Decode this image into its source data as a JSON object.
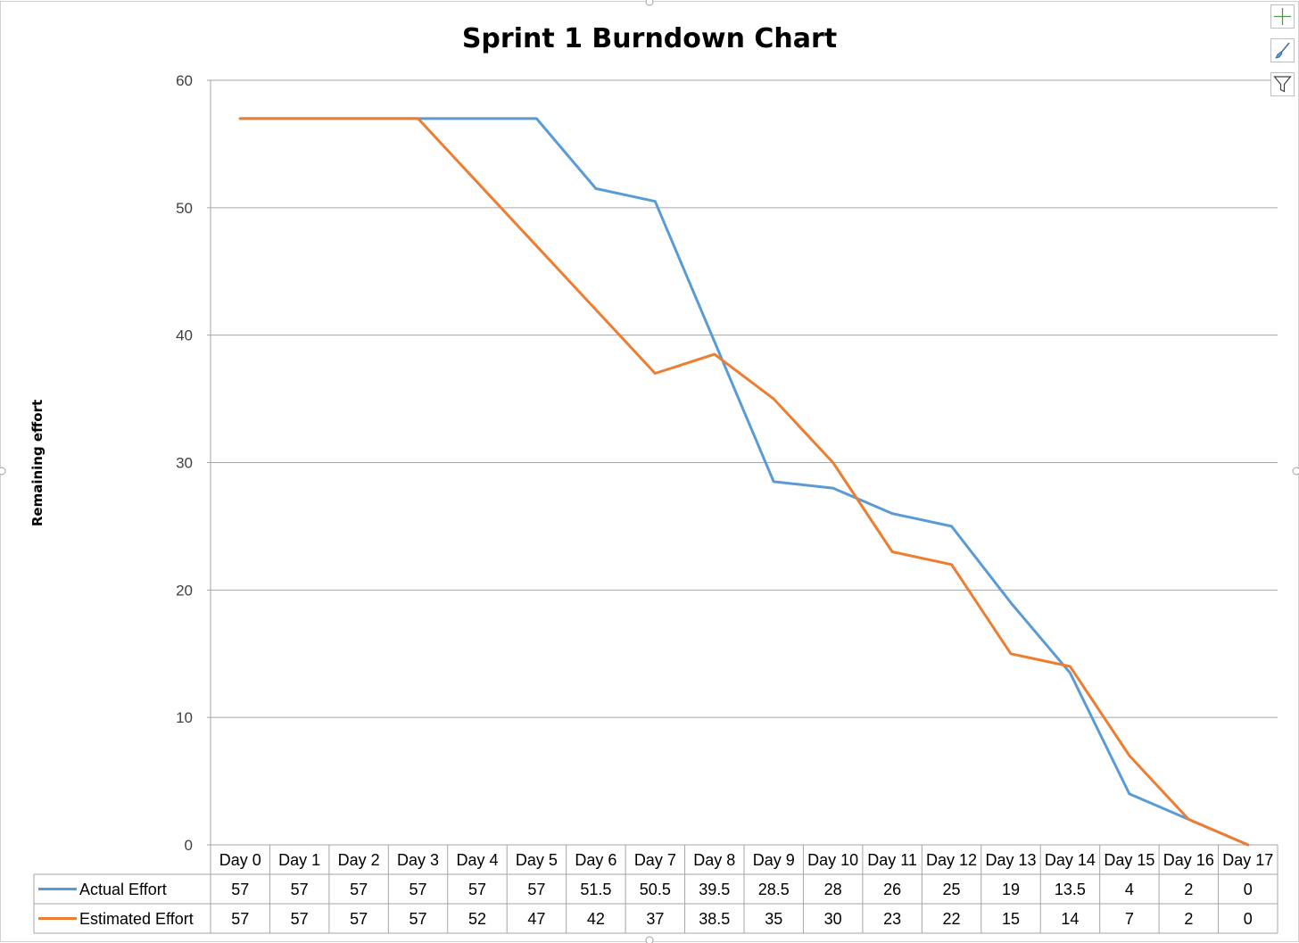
{
  "tools": [
    {
      "name": "chart-elements-button",
      "icon": "plus-icon"
    },
    {
      "name": "chart-styles-button",
      "icon": "paintbrush-icon"
    },
    {
      "name": "chart-filters-button",
      "icon": "filter-icon"
    }
  ],
  "chart_data": {
    "type": "line",
    "title": "Sprint 1 Burndown Chart",
    "xlabel": "",
    "ylabel": "Remaining effort",
    "ylim": [
      0,
      60
    ],
    "yticks": [
      0,
      10,
      20,
      30,
      40,
      50,
      60
    ],
    "grid": true,
    "legend": "data-table",
    "categories": [
      "Day 0",
      "Day 1",
      "Day 2",
      "Day 3",
      "Day 4",
      "Day 5",
      "Day 6",
      "Day 7",
      "Day 8",
      "Day 9",
      "Day 10",
      "Day 11",
      "Day 12",
      "Day 13",
      "Day 14",
      "Day 15",
      "Day 16",
      "Day 17"
    ],
    "series": [
      {
        "name": "Actual Effort",
        "color": "#5B9BD5",
        "values": [
          57,
          57,
          57,
          57,
          57,
          57,
          51.5,
          50.5,
          39.5,
          28.5,
          28,
          26,
          25,
          19,
          13.5,
          4,
          2,
          0
        ],
        "labels": [
          "57",
          "57",
          "57",
          "57",
          "57",
          "57",
          "51.5",
          "50.5",
          "39.5",
          "28.5",
          "28",
          "26",
          "25",
          "19",
          "13.5",
          "4",
          "2",
          "0"
        ]
      },
      {
        "name": "Estimated Effort",
        "color": "#ED7D31",
        "values": [
          57,
          57,
          57,
          57,
          52,
          47,
          42,
          37,
          38.5,
          35,
          30,
          23,
          22,
          15,
          14,
          7,
          2,
          0
        ],
        "labels": [
          "57",
          "57",
          "57",
          "57",
          "52",
          "47",
          "42",
          "37",
          "38.5",
          "35",
          "30",
          "23",
          "22",
          "15",
          "14",
          "7",
          "2",
          "0"
        ]
      }
    ]
  }
}
